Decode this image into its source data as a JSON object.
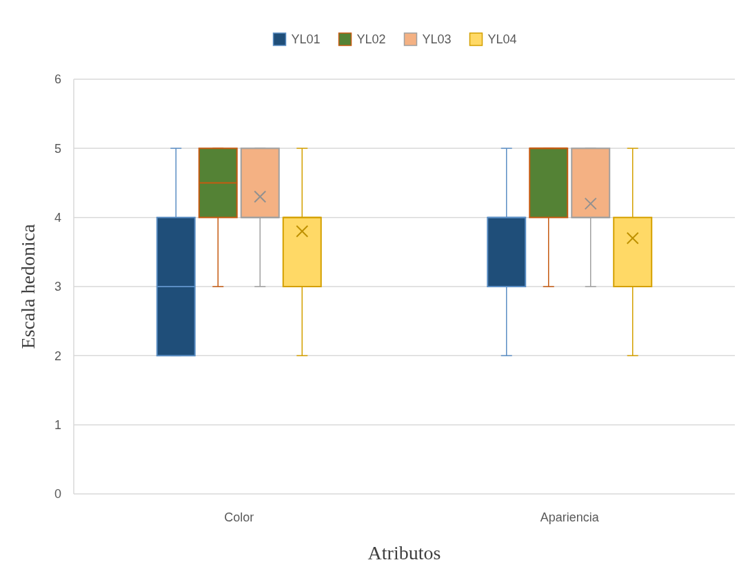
{
  "chart_data": {
    "type": "box",
    "categories": [
      "Color",
      "Apariencia"
    ],
    "xlabel": "Atributos",
    "ylabel": "Escala hedonica",
    "ylim": [
      0,
      6
    ],
    "yticks": [
      0,
      1,
      2,
      3,
      4,
      5,
      6
    ],
    "grid": "y",
    "legend": "top",
    "series": [
      {
        "name": "YL01",
        "color": "#1f4e79",
        "boxes": [
          {
            "low": 2,
            "q1": 2,
            "median": 3,
            "q3": 4,
            "high": 5
          },
          {
            "low": 2,
            "q1": 3,
            "median": 4,
            "q3": 4,
            "high": 5
          }
        ]
      },
      {
        "name": "YL02",
        "color": "#548235",
        "boxes": [
          {
            "low": 3,
            "q1": 4,
            "median": 4.5,
            "q3": 5,
            "high": 5
          },
          {
            "low": 3,
            "q1": 4,
            "median": 5,
            "q3": 5,
            "high": 5
          }
        ]
      },
      {
        "name": "YL03",
        "color": "#f4b183",
        "boxes": [
          {
            "low": 3,
            "q1": 4,
            "median": 4,
            "q3": 5,
            "high": 5,
            "mean": 4.3
          },
          {
            "low": 3,
            "q1": 4,
            "median": 4,
            "q3": 5,
            "high": 5,
            "mean": 4.2
          }
        ]
      },
      {
        "name": "YL04",
        "color": "#ffd966",
        "boxes": [
          {
            "low": 2,
            "q1": 3,
            "median": 4,
            "q3": 4,
            "high": 5,
            "mean": 3.8
          },
          {
            "low": 2,
            "q1": 3,
            "median": 3,
            "q3": 4,
            "high": 5,
            "mean": 3.7
          }
        ]
      }
    ]
  }
}
